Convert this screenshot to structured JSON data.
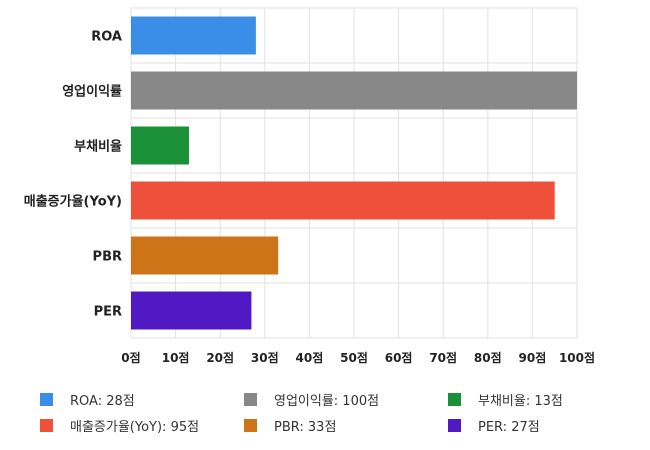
{
  "chart_data": {
    "type": "bar",
    "orientation": "horizontal",
    "categories": [
      "ROA",
      "영업이익률",
      "부채비율",
      "매출증가율(YoY)",
      "PBR",
      "PER"
    ],
    "values": [
      28,
      100,
      13,
      95,
      33,
      27
    ],
    "colors": [
      "#3b8ee8",
      "#888888",
      "#1a9138",
      "#ee5039",
      "#cd7418",
      "#5119c4"
    ],
    "xlim": [
      0,
      100
    ],
    "x_ticks": [
      "0점",
      "10점",
      "20점",
      "30점",
      "40점",
      "50점",
      "60점",
      "70점",
      "80점",
      "90점",
      "100점"
    ],
    "grid": true,
    "legend": {
      "placement": "bottom",
      "items": [
        "ROA: 28점",
        "영업이익률: 100점",
        "부채비율: 13점",
        "매출증가율(YoY): 95점",
        "PBR: 33점",
        "PER: 27점"
      ]
    }
  }
}
